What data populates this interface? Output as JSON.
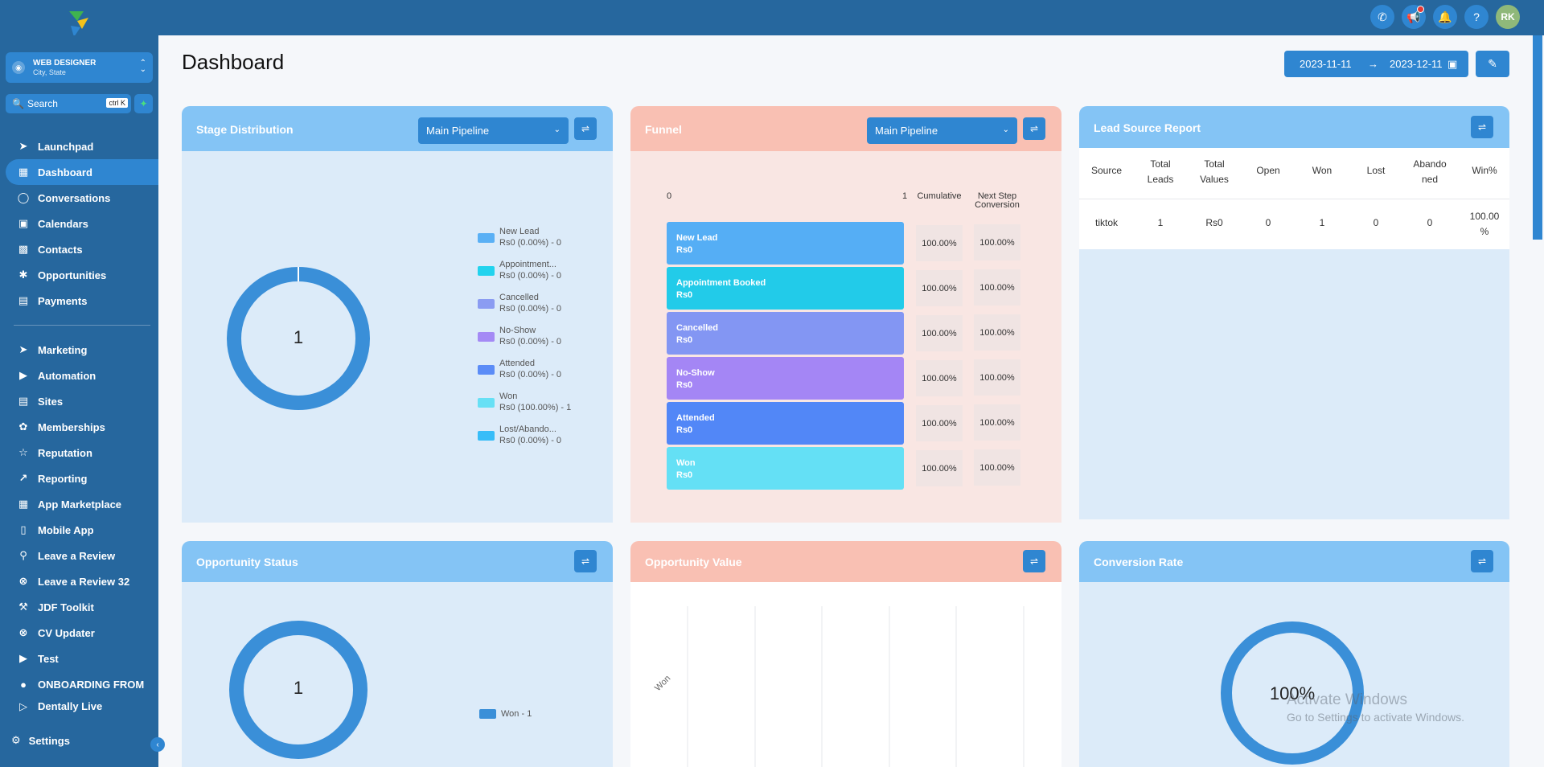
{
  "topbar": {
    "actions": [
      "phone-icon",
      "megaphone-icon",
      "bell-icon",
      "help-icon"
    ],
    "avatar_initials": "RK"
  },
  "sidebar": {
    "account_name": "WEB DESIGNER",
    "account_sub": "City, State",
    "search_label": "Search",
    "search_shortcut": "ctrl K",
    "items": [
      {
        "label": "Launchpad",
        "icon": "rocket-icon"
      },
      {
        "label": "Dashboard",
        "icon": "grid-icon",
        "active": true
      },
      {
        "label": "Conversations",
        "icon": "chat-icon"
      },
      {
        "label": "Calendars",
        "icon": "calendar-icon"
      },
      {
        "label": "Contacts",
        "icon": "contact-icon"
      },
      {
        "label": "Opportunities",
        "icon": "network-icon"
      },
      {
        "label": "Payments",
        "icon": "receipt-icon"
      }
    ],
    "items2": [
      {
        "label": "Marketing",
        "icon": "send-icon"
      },
      {
        "label": "Automation",
        "icon": "play-icon"
      },
      {
        "label": "Sites",
        "icon": "window-icon"
      },
      {
        "label": "Memberships",
        "icon": "badge-icon"
      },
      {
        "label": "Reputation",
        "icon": "star-icon"
      },
      {
        "label": "Reporting",
        "icon": "trend-icon"
      },
      {
        "label": "App Marketplace",
        "icon": "apps-icon"
      },
      {
        "label": "Mobile App",
        "icon": "mobile-icon"
      },
      {
        "label": "Leave a Review",
        "icon": "pin-icon"
      },
      {
        "label": "Leave a Review 32",
        "icon": "xbox-icon"
      },
      {
        "label": "JDF Toolkit",
        "icon": "hammer-icon"
      },
      {
        "label": "CV Updater",
        "icon": "xbox-icon"
      },
      {
        "label": "Test",
        "icon": "youtube-icon"
      },
      {
        "label": "ONBOARDING FROM",
        "icon": "circle-icon"
      },
      {
        "label": "Dentally Live",
        "icon": "tooth-icon"
      }
    ],
    "settings_label": "Settings"
  },
  "main": {
    "title": "Dashboard",
    "date_from": "2023-11-11",
    "date_to": "2023-12-11"
  },
  "stage_distribution": {
    "title": "Stage Distribution",
    "pipeline": "Main Pipeline",
    "center": "1",
    "legend": [
      {
        "name": "New Lead",
        "value": "Rs0 (0.00%) - 0",
        "color": "#5ab0f5"
      },
      {
        "name": "Appointment...",
        "value": "Rs0 (0.00%) - 0",
        "color": "#22d3ee"
      },
      {
        "name": "Cancelled",
        "value": "Rs0 (0.00%) - 0",
        "color": "#8b9cf2"
      },
      {
        "name": "No-Show",
        "value": "Rs0 (0.00%) - 0",
        "color": "#a48af5"
      },
      {
        "name": "Attended",
        "value": "Rs0 (0.00%) - 0",
        "color": "#5b8cf7"
      },
      {
        "name": "Won",
        "value": "Rs0 (100.00%) - 1",
        "color": "#67e0f5"
      },
      {
        "name": "Lost/Abando...",
        "value": "Rs0 (0.00%) - 0",
        "color": "#38bdf8"
      }
    ]
  },
  "funnel": {
    "title": "Funnel",
    "pipeline": "Main Pipeline",
    "axis_min": "0",
    "axis_max": "1",
    "col_cumulative": "Cumulative",
    "col_next_1": "Next Step",
    "col_next_2": "Conversion",
    "rows": [
      {
        "stage": "New Lead",
        "value": "Rs0",
        "cumulative": "100.00%",
        "next": "100.00%",
        "color": "#55aef5"
      },
      {
        "stage": "Appointment Booked",
        "value": "Rs0",
        "cumulative": "100.00%",
        "next": "100.00%",
        "color": "#22cbe9"
      },
      {
        "stage": "Cancelled",
        "value": "Rs0",
        "cumulative": "100.00%",
        "next": "100.00%",
        "color": "#8396f3"
      },
      {
        "stage": "No-Show",
        "value": "Rs0",
        "cumulative": "100.00%",
        "next": "100.00%",
        "color": "#a486f5"
      },
      {
        "stage": "Attended",
        "value": "Rs0",
        "cumulative": "100.00%",
        "next": "100.00%",
        "color": "#5287f7"
      },
      {
        "stage": "Won",
        "value": "Rs0",
        "cumulative": "100.00%",
        "next": "100.00%",
        "color": "#64e0f5"
      }
    ]
  },
  "lead_source": {
    "title": "Lead Source Report",
    "headers": [
      [
        "Source"
      ],
      [
        "Total",
        "Leads"
      ],
      [
        "Total",
        "Values"
      ],
      [
        "Open"
      ],
      [
        "Won"
      ],
      [
        "Lost"
      ],
      [
        "Abando",
        "ned"
      ],
      [
        "Win%"
      ]
    ],
    "row": [
      "tiktok",
      "1",
      "Rs0",
      "0",
      "1",
      "0",
      "0",
      "100.00",
      "%"
    ]
  },
  "opportunity_status": {
    "title": "Opportunity Status",
    "center": "1",
    "legend": "Won - 1"
  },
  "opportunity_value": {
    "title": "Opportunity Value",
    "category": "Won"
  },
  "conversion_rate": {
    "title": "Conversion Rate",
    "value": "100%"
  },
  "watermark": {
    "line1": "Activate Windows",
    "line2": "Go to Settings to activate Windows."
  }
}
